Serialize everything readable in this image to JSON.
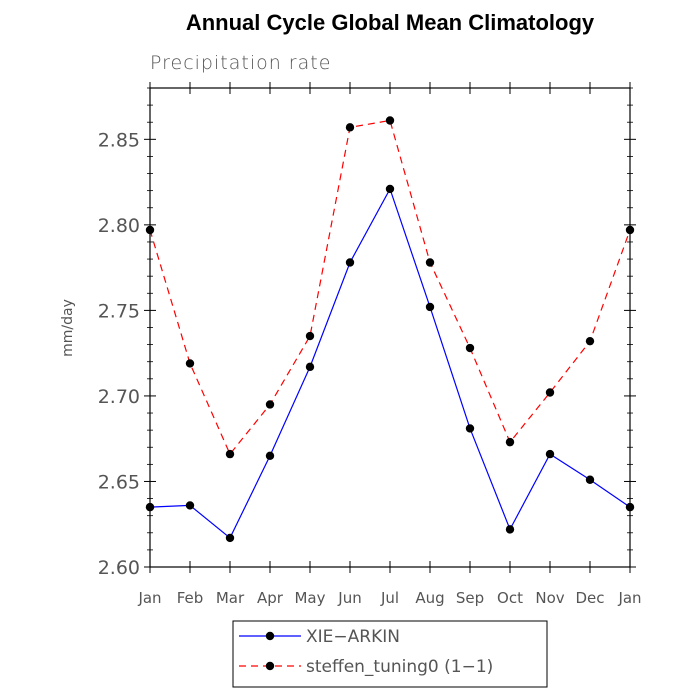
{
  "chart_data": {
    "type": "line",
    "title": "Annual Cycle Global Mean Climatology",
    "subtitle": "Precipitation rate",
    "xlabel": "",
    "ylabel": "mm/day",
    "categories": [
      "Jan",
      "Feb",
      "Mar",
      "Apr",
      "May",
      "Jun",
      "Jul",
      "Aug",
      "Sep",
      "Oct",
      "Nov",
      "Dec",
      "Jan"
    ],
    "ylim": [
      2.6,
      2.88
    ],
    "yticks": [
      2.6,
      2.65,
      2.7,
      2.75,
      2.8,
      2.85
    ],
    "ytick_labels": [
      "2.60",
      "2.65",
      "2.70",
      "2.75",
      "2.80",
      "2.85"
    ],
    "grid": false,
    "legend_position": "bottom-center",
    "series": [
      {
        "name": "XIE−ARKIN",
        "color": "#0000ff",
        "style": "solid",
        "marker": "filled-circle",
        "values": [
          2.635,
          2.636,
          2.617,
          2.665,
          2.717,
          2.778,
          2.821,
          2.752,
          2.681,
          2.622,
          2.666,
          2.651,
          2.635
        ]
      },
      {
        "name": "steffen_tuning0 (1−1)",
        "color": "#ff0000",
        "style": "dashed",
        "marker": "filled-circle",
        "values": [
          2.797,
          2.719,
          2.666,
          2.695,
          2.735,
          2.857,
          2.861,
          2.778,
          2.728,
          2.673,
          2.702,
          2.732,
          2.797
        ]
      }
    ]
  }
}
